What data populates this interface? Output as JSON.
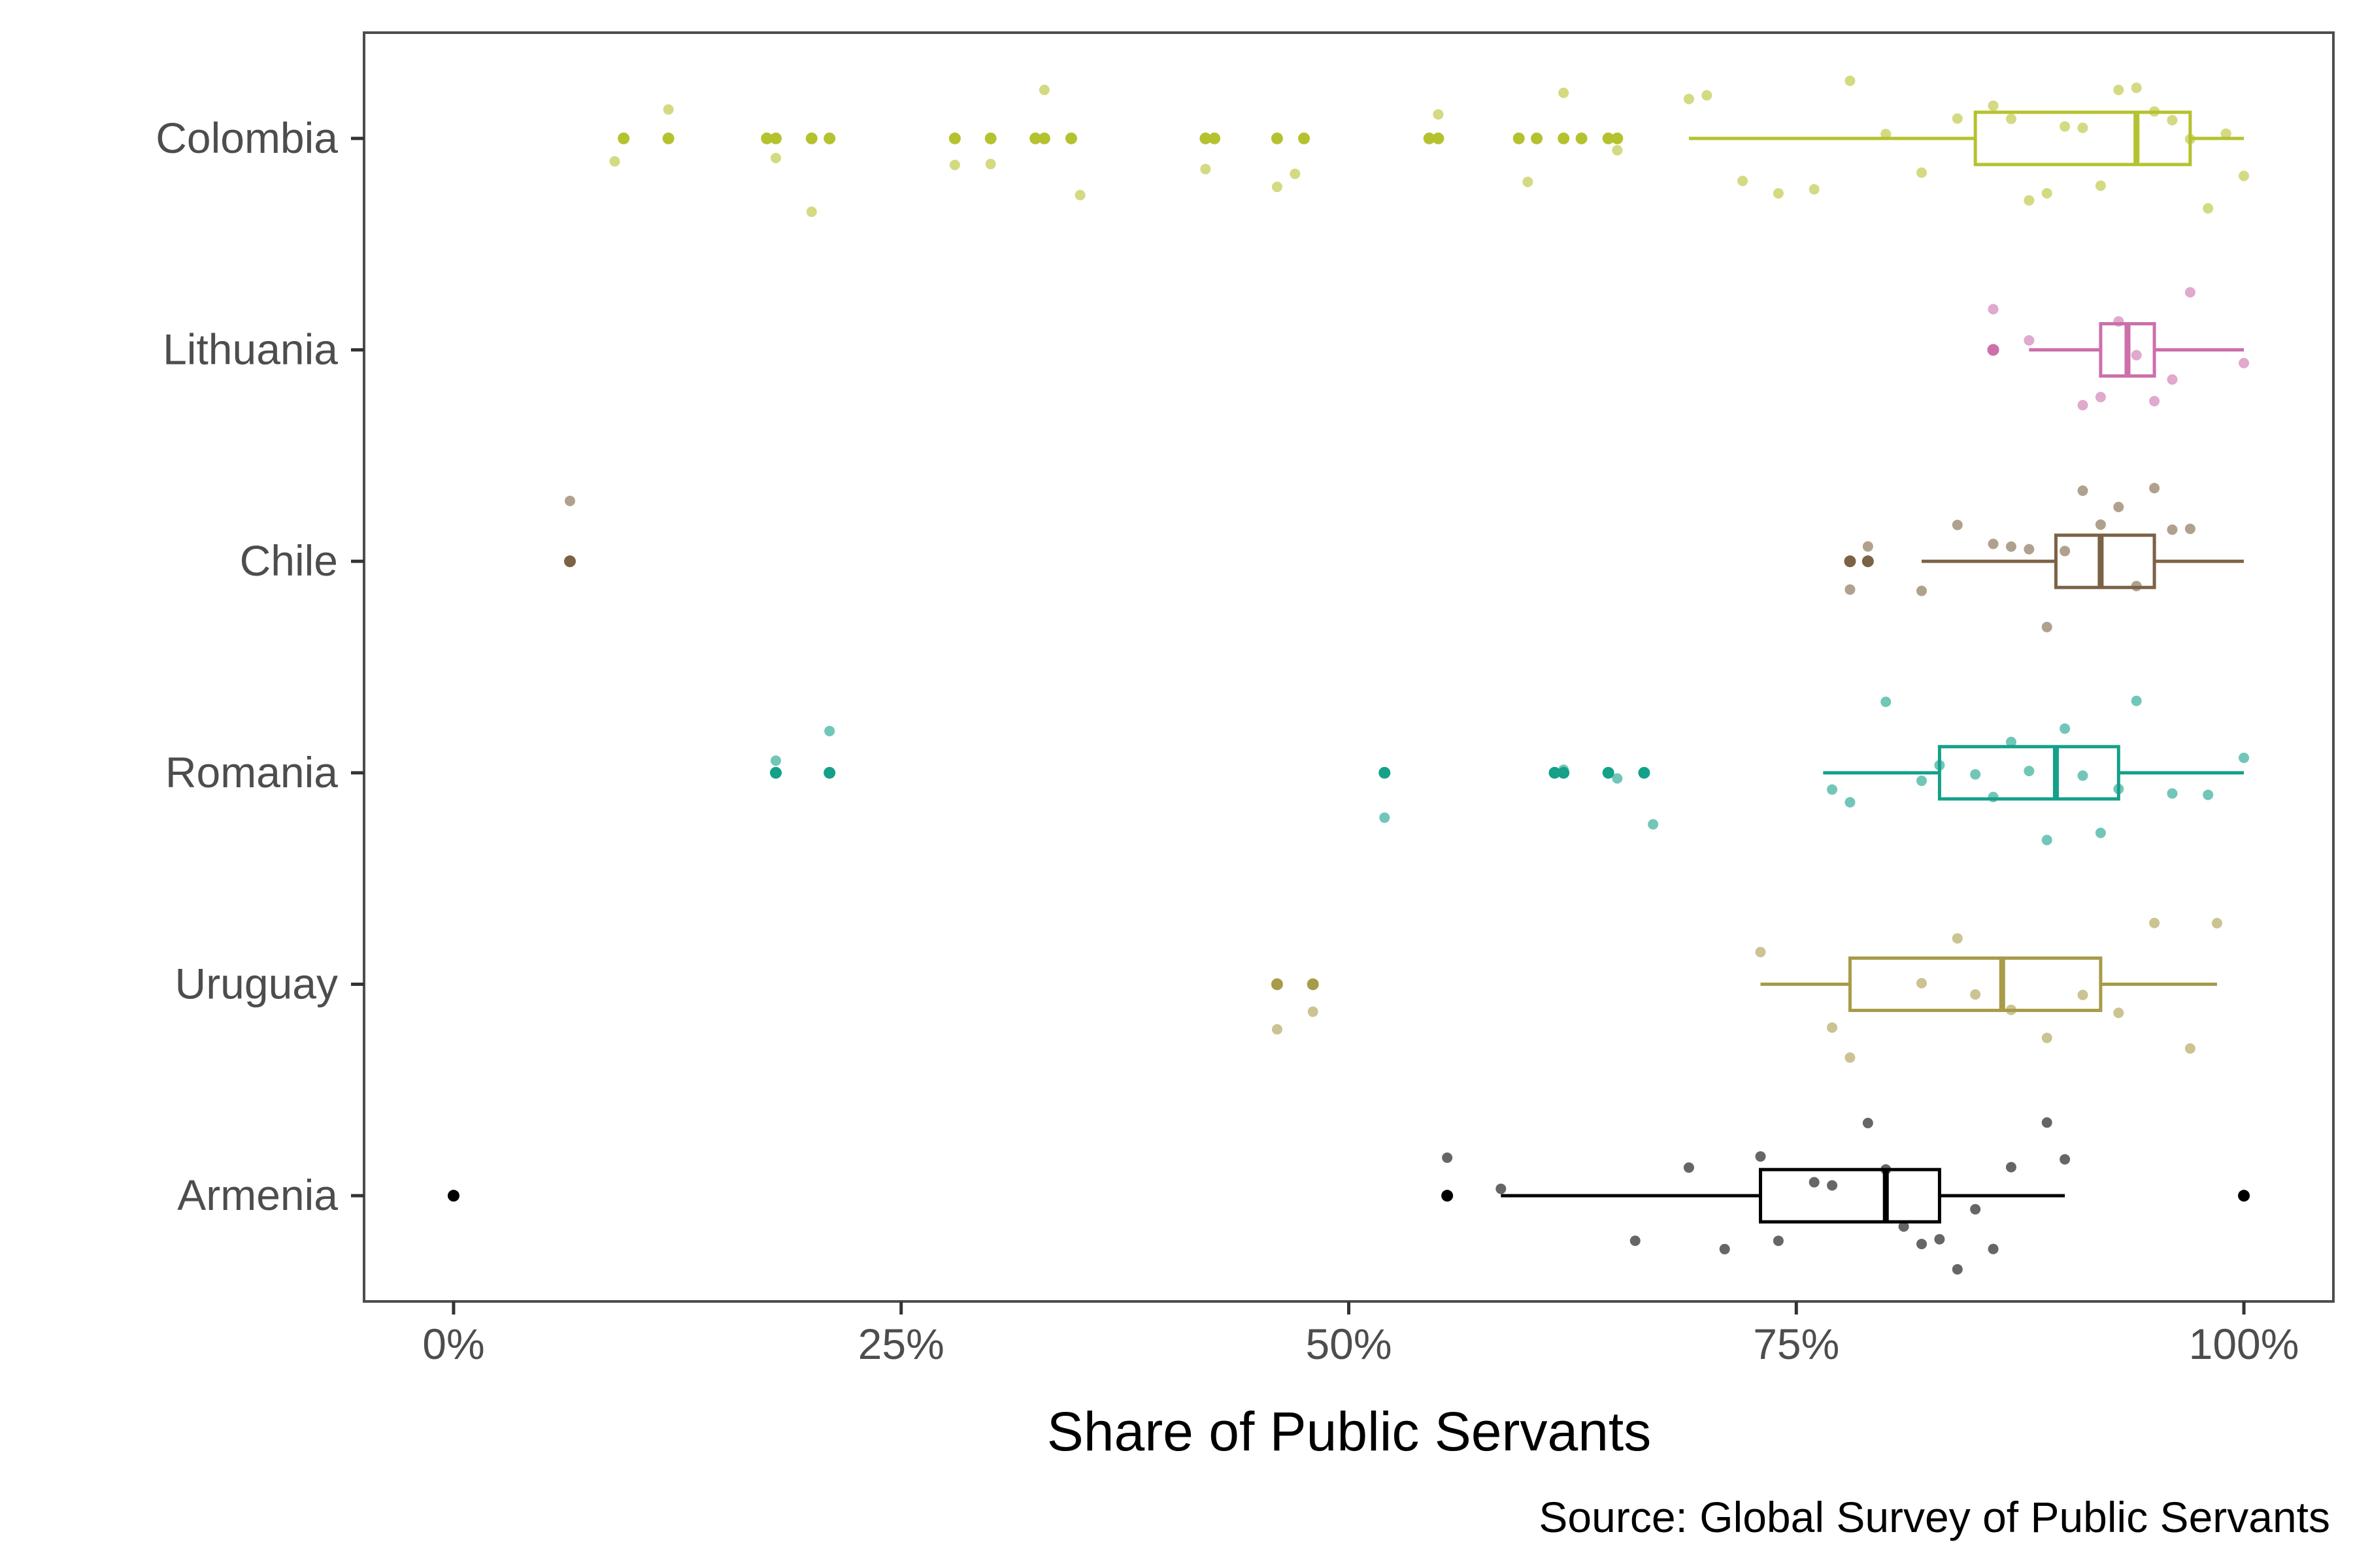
{
  "chart_data": {
    "type": "boxplot",
    "xlabel": "Share of Public Servants",
    "ylabel": "",
    "caption": "Source: Global Survey of Public Servants",
    "xlim": [
      -0.05,
      1.05
    ],
    "x_ticks": [
      0,
      0.25,
      0.5,
      0.75,
      1.0
    ],
    "x_tick_labels": [
      "0%",
      "25%",
      "50%",
      "75%",
      "100%"
    ],
    "categories": [
      "Colombia",
      "Lithuania",
      "Chile",
      "Romania",
      "Uruguay",
      "Armenia"
    ],
    "grid": false,
    "legend": "none",
    "series": [
      {
        "category": "Colombia",
        "color": "#b5c22f",
        "box": {
          "min": 0.69,
          "q1": 0.85,
          "median": 0.94,
          "q3": 0.97,
          "max": 1.0
        },
        "outliers": [
          0.095,
          0.12,
          0.175,
          0.18,
          0.2,
          0.21,
          0.28,
          0.3,
          0.325,
          0.33,
          0.345,
          0.42,
          0.425,
          0.46,
          0.475,
          0.545,
          0.55,
          0.595,
          0.605,
          0.62,
          0.63,
          0.645,
          0.65
        ],
        "points": [
          0.09,
          0.12,
          0.18,
          0.2,
          0.28,
          0.3,
          0.33,
          0.35,
          0.42,
          0.46,
          0.47,
          0.55,
          0.6,
          0.62,
          0.65,
          0.69,
          0.7,
          0.72,
          0.74,
          0.76,
          0.78,
          0.8,
          0.82,
          0.84,
          0.86,
          0.87,
          0.88,
          0.89,
          0.9,
          0.91,
          0.92,
          0.93,
          0.94,
          0.95,
          0.96,
          0.97,
          0.98,
          0.99,
          1.0
        ]
      },
      {
        "category": "Lithuania",
        "color": "#cc6fab",
        "box": {
          "min": 0.88,
          "q1": 0.92,
          "median": 0.935,
          "q3": 0.95,
          "max": 1.0
        },
        "outliers": [
          0.86
        ],
        "points": [
          0.86,
          0.88,
          0.91,
          0.92,
          0.93,
          0.94,
          0.95,
          0.96,
          0.97,
          1.0
        ]
      },
      {
        "category": "Chile",
        "color": "#7c6245",
        "box": {
          "min": 0.82,
          "q1": 0.895,
          "median": 0.92,
          "q3": 0.95,
          "max": 1.0
        },
        "outliers": [
          0.065,
          0.78,
          0.79
        ],
        "points": [
          0.065,
          0.78,
          0.79,
          0.82,
          0.84,
          0.86,
          0.87,
          0.88,
          0.89,
          0.9,
          0.91,
          0.92,
          0.93,
          0.94,
          0.95,
          0.96,
          0.97
        ]
      },
      {
        "category": "Romania",
        "color": "#14a089",
        "box": {
          "min": 0.765,
          "q1": 0.83,
          "median": 0.895,
          "q3": 0.93,
          "max": 1.0
        },
        "outliers": [
          0.18,
          0.21,
          0.52,
          0.615,
          0.62,
          0.645,
          0.665
        ],
        "points": [
          0.18,
          0.21,
          0.52,
          0.62,
          0.65,
          0.67,
          0.77,
          0.78,
          0.8,
          0.82,
          0.83,
          0.85,
          0.86,
          0.87,
          0.88,
          0.89,
          0.9,
          0.91,
          0.92,
          0.93,
          0.94,
          0.96,
          0.98,
          1.0
        ]
      },
      {
        "category": "Uruguay",
        "color": "#a89b4a",
        "box": {
          "min": 0.73,
          "q1": 0.78,
          "median": 0.865,
          "q3": 0.92,
          "max": 0.985
        },
        "outliers": [
          0.46,
          0.48
        ],
        "points": [
          0.46,
          0.48,
          0.73,
          0.77,
          0.78,
          0.82,
          0.84,
          0.85,
          0.87,
          0.89,
          0.91,
          0.93,
          0.95,
          0.97,
          0.985
        ]
      },
      {
        "category": "Armenia",
        "color": "#000000",
        "box": {
          "min": 0.585,
          "q1": 0.73,
          "median": 0.8,
          "q3": 0.83,
          "max": 0.9
        },
        "outliers": [
          0.0,
          0.555,
          1.0
        ],
        "points": [
          0.555,
          0.585,
          0.66,
          0.69,
          0.71,
          0.73,
          0.74,
          0.76,
          0.77,
          0.79,
          0.8,
          0.81,
          0.82,
          0.83,
          0.84,
          0.85,
          0.86,
          0.87,
          0.89,
          0.9
        ]
      }
    ]
  }
}
